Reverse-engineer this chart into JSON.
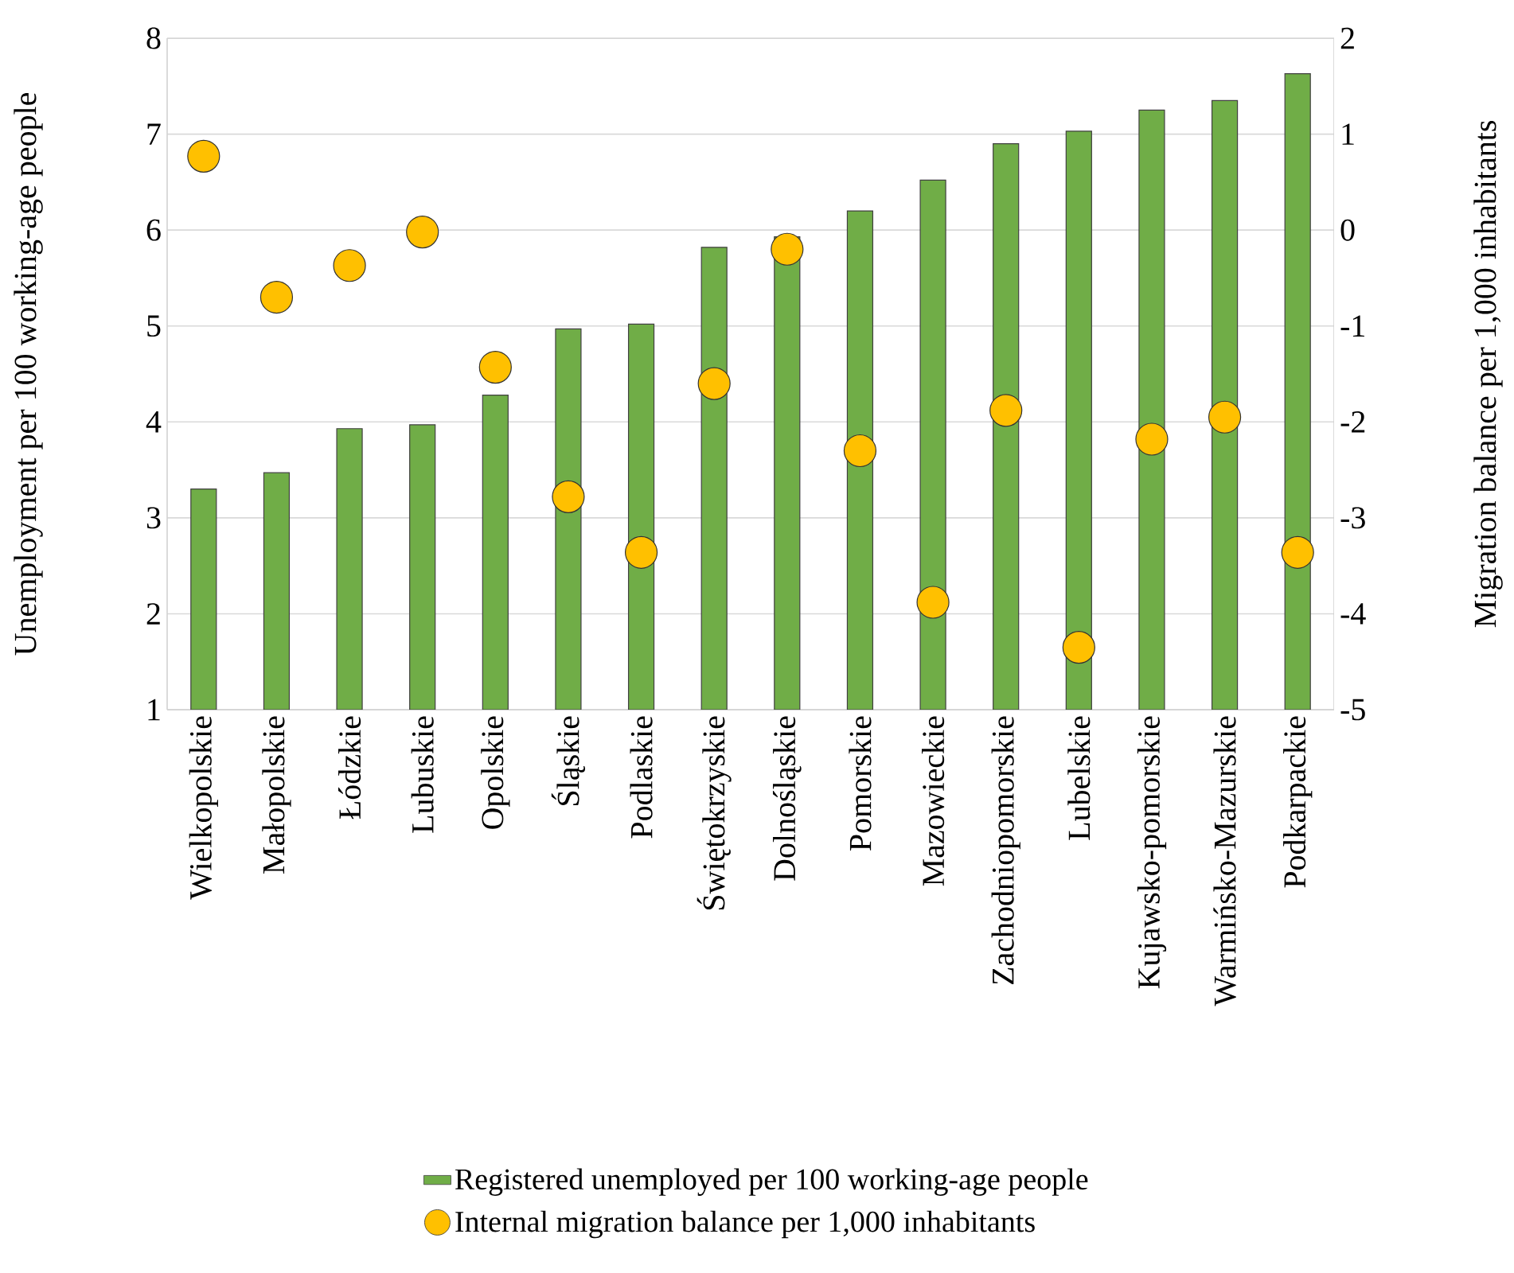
{
  "chart_data": {
    "type": "bar",
    "categories": [
      "Wielkopolskie",
      "Małopolskie",
      "Łódzkie",
      "Lubuskie",
      "Opolskie",
      "Śląskie",
      "Podlaskie",
      "Świętokrzyskie",
      "Dolnośląskie",
      "Pomorskie",
      "Mazowieckie",
      "Zachodniopomorskie",
      "Lubelskie",
      "Kujawsko-pomorskie",
      "Warmińsko-Mazurskie",
      "Podkarpackie"
    ],
    "series": [
      {
        "name": "Registered unemployed per 100 working-age people",
        "color": "#70ad47",
        "values": [
          3.3,
          3.47,
          3.93,
          3.97,
          4.28,
          4.97,
          5.02,
          5.82,
          5.93,
          6.2,
          6.52,
          6.9,
          7.03,
          7.25,
          7.35,
          7.63
        ]
      },
      {
        "name": "Internal migration balance per 1,000 inhabitants",
        "type": "scatter",
        "axis": "y2",
        "marker": "circle",
        "color": "#ffc000",
        "values": [
          0.77,
          -0.7,
          -0.37,
          -0.02,
          -1.43,
          -2.78,
          -3.36,
          -1.6,
          -0.2,
          -2.3,
          -3.88,
          -1.88,
          -4.35,
          -2.18,
          -1.95,
          -3.36
        ]
      }
    ],
    "ylabel": "Unemployment per 100 working-age people",
    "y2label": "Migration balance per 1,000 inhabitants",
    "ylim": [
      1,
      8
    ],
    "yticks": [
      1,
      2,
      3,
      4,
      5,
      6,
      7,
      8
    ],
    "y2lim": [
      -5,
      2
    ],
    "y2ticks": [
      -5,
      -4,
      -3,
      -2,
      -1,
      0,
      1,
      2
    ],
    "grid": "y",
    "legend": "bottom"
  }
}
